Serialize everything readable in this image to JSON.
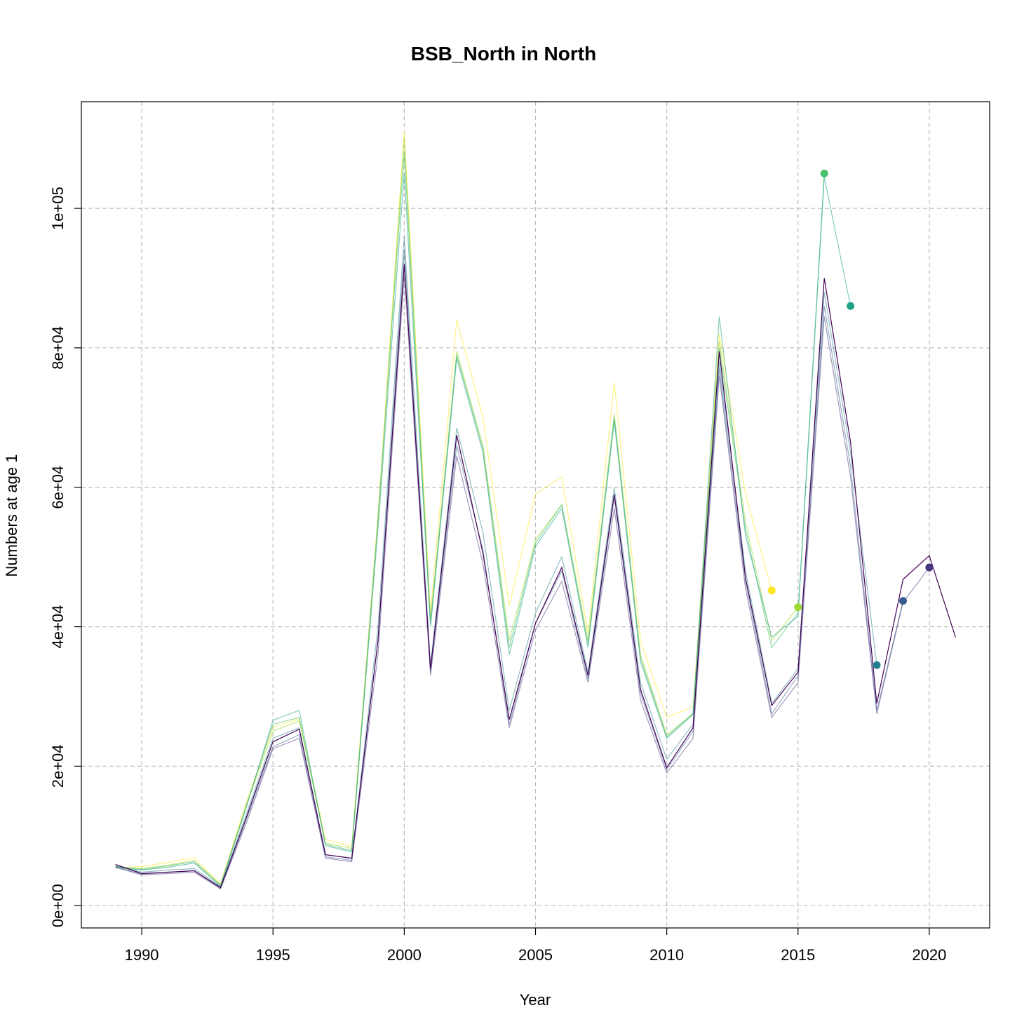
{
  "chart_data": {
    "type": "line",
    "title": "BSB_North in North",
    "xlabel": "Year",
    "ylabel": "Numbers at age 1",
    "xlim": [
      1987.7,
      2022.3
    ],
    "ylim": [
      -3200,
      115300
    ],
    "x_ticks": [
      1990,
      1995,
      2000,
      2005,
      2010,
      2015,
      2020
    ],
    "x_tick_labels": [
      "1990",
      "1995",
      "2000",
      "2005",
      "2010",
      "2015",
      "2020"
    ],
    "y_ticks": [
      0,
      20000,
      40000,
      60000,
      80000,
      100000
    ],
    "y_tick_labels": [
      "0e+00",
      "2e+04",
      "4e+04",
      "6e+04",
      "8e+04",
      "1e+05"
    ],
    "grid": true,
    "legend": "none",
    "series": [
      {
        "color": "#FDE725",
        "opacity": 0.55,
        "x": [
          1989,
          1990,
          1991,
          1992,
          1993,
          1994,
          1995,
          1996,
          1997,
          1998,
          1999,
          2000,
          2001,
          2002,
          2003,
          2004,
          2005,
          2006,
          2007,
          2008,
          2009,
          2010,
          2011,
          2012,
          2013,
          2014
        ],
        "values": [
          5400,
          5600,
          6200,
          6900,
          3100,
          15000,
          25600,
          26800,
          9500,
          8500,
          56000,
          111000,
          42000,
          84000,
          70000,
          43000,
          59000,
          61500,
          39000,
          75000,
          38000,
          27000,
          28500,
          82000,
          59000,
          45200
        ],
        "point": {
          "x": 2014,
          "y": 45200
        }
      },
      {
        "color": "#A0DA39",
        "opacity": 0.6,
        "x": [
          1989,
          1990,
          1991,
          1992,
          1993,
          1994,
          1995,
          1996,
          1997,
          1998,
          1999,
          2000,
          2001,
          2002,
          2003,
          2004,
          2005,
          2006,
          2007,
          2008,
          2009,
          2010,
          2011,
          2012,
          2013,
          2014,
          2015
        ],
        "values": [
          5500,
          5300,
          5800,
          6500,
          3000,
          14600,
          25000,
          26500,
          9000,
          8200,
          55000,
          110000,
          41000,
          79500,
          66000,
          38000,
          52500,
          57500,
          38000,
          70500,
          36000,
          24500,
          27500,
          81000,
          55000,
          38000,
          42800
        ],
        "point": {
          "x": 2015,
          "y": 42800
        }
      },
      {
        "color": "#4AC16D",
        "opacity": 0.6,
        "x": [
          1989,
          1990,
          1991,
          1992,
          1993,
          1994,
          1995,
          1996,
          1997,
          1998,
          1999,
          2000,
          2001,
          2002,
          2003,
          2004,
          2005,
          2006,
          2007,
          2008,
          2009,
          2010,
          2011,
          2012,
          2013,
          2014,
          2015,
          2016
        ],
        "values": [
          5600,
          5200,
          5700,
          6300,
          2900,
          14500,
          26000,
          27000,
          8800,
          7900,
          55500,
          108000,
          40500,
          79000,
          65500,
          37000,
          52000,
          57500,
          37500,
          70000,
          35500,
          24200,
          27600,
          80000,
          54000,
          37000,
          42000,
          105000
        ],
        "point": {
          "x": 2016,
          "y": 105000
        }
      },
      {
        "color": "#1FA187",
        "opacity": 0.55,
        "x": [
          1989,
          1990,
          1991,
          1992,
          1993,
          1994,
          1995,
          1996,
          1997,
          1998,
          1999,
          2000,
          2001,
          2002,
          2003,
          2004,
          2005,
          2006,
          2007,
          2008,
          2009,
          2010,
          2011,
          2012,
          2013,
          2014,
          2015,
          2016,
          2017
        ],
        "values": [
          5500,
          5100,
          5500,
          6100,
          2800,
          14300,
          26600,
          28000,
          8600,
          7700,
          54000,
          105000,
          40000,
          78500,
          65000,
          36000,
          51500,
          57000,
          37000,
          69500,
          35000,
          24000,
          27400,
          84500,
          53000,
          38500,
          41500,
          104500,
          86000
        ],
        "point": {
          "x": 2017,
          "y": 86000
        }
      },
      {
        "color": "#277F8E",
        "opacity": 0.5,
        "x": [
          1989,
          1990,
          1991,
          1992,
          1993,
          1994,
          1995,
          1996,
          1997,
          1998,
          1999,
          2000,
          2001,
          2002,
          2003,
          2004,
          2005,
          2006,
          2007,
          2008,
          2009,
          2010,
          2011,
          2012,
          2013,
          2014,
          2015,
          2016,
          2017,
          2018
        ],
        "values": [
          5700,
          4800,
          5100,
          5300,
          2700,
          13300,
          24000,
          25500,
          7300,
          6800,
          40000,
          96000,
          34500,
          68500,
          53500,
          28000,
          42000,
          50000,
          33500,
          60000,
          32000,
          21000,
          26000,
          78000,
          48000,
          29000,
          34000,
          88000,
          65000,
          34500
        ],
        "point": {
          "x": 2018,
          "y": 34500
        }
      },
      {
        "color": "#365C8D",
        "opacity": 0.5,
        "x": [
          1989,
          1990,
          1991,
          1992,
          1993,
          1994,
          1995,
          1996,
          1997,
          1998,
          1999,
          2000,
          2001,
          2002,
          2003,
          2004,
          2005,
          2006,
          2007,
          2008,
          2009,
          2010,
          2011,
          2012,
          2013,
          2014,
          2015,
          2016,
          2017,
          2018,
          2019
        ],
        "values": [
          5600,
          4500,
          4800,
          5000,
          2500,
          12500,
          22800,
          24500,
          7000,
          6500,
          38000,
          94000,
          33500,
          66000,
          51000,
          26000,
          40500,
          48000,
          32500,
          58500,
          30500,
          19500,
          25000,
          77000,
          46500,
          27500,
          33000,
          86000,
          63000,
          28000,
          43700
        ],
        "point": {
          "x": 2019,
          "y": 43700
        }
      },
      {
        "color": "#46337E",
        "opacity": 0.5,
        "x": [
          1989,
          1990,
          1991,
          1992,
          1993,
          1994,
          1995,
          1996,
          1997,
          1998,
          1999,
          2000,
          2001,
          2002,
          2003,
          2004,
          2005,
          2006,
          2007,
          2008,
          2009,
          2010,
          2011,
          2012,
          2013,
          2014,
          2015,
          2016,
          2017,
          2018,
          2019,
          2020
        ],
        "values": [
          5500,
          4400,
          4600,
          4800,
          2400,
          12000,
          22500,
          24000,
          6800,
          6300,
          36000,
          90500,
          33000,
          64500,
          49000,
          25500,
          39500,
          46500,
          32000,
          57000,
          29500,
          19000,
          24000,
          76000,
          45500,
          27000,
          32000,
          84500,
          61500,
          27500,
          43500,
          48500
        ],
        "point": {
          "x": 2020,
          "y": 48500
        }
      },
      {
        "color": "#440154",
        "opacity": 1.0,
        "x": [
          1989,
          1990,
          1991,
          1992,
          1993,
          1994,
          1995,
          1996,
          1997,
          1998,
          1999,
          2000,
          2001,
          2002,
          2003,
          2004,
          2005,
          2006,
          2007,
          2008,
          2009,
          2010,
          2011,
          2012,
          2013,
          2014,
          2015,
          2016,
          2017,
          2018,
          2019,
          2020,
          2021
        ],
        "values": [
          5900,
          4600,
          4800,
          5000,
          2600,
          12800,
          23500,
          25300,
          7300,
          6800,
          38000,
          92000,
          34000,
          67500,
          50500,
          26700,
          40500,
          48500,
          33000,
          59000,
          31000,
          19800,
          25500,
          79500,
          47000,
          28700,
          33500,
          90000,
          66500,
          29000,
          46800,
          50200,
          38500
        ]
      }
    ]
  }
}
